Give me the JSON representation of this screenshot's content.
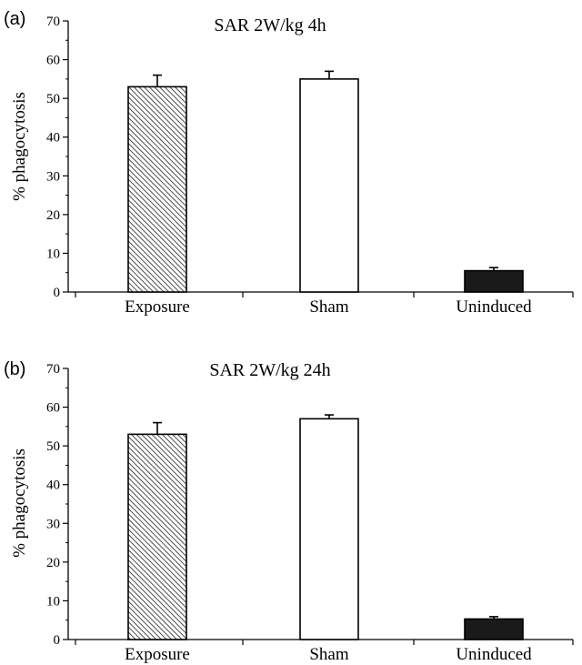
{
  "chart_data": [
    {
      "panel_label": "(a)",
      "type": "bar",
      "title": "SAR 2W/kg 4h",
      "xlabel": "",
      "ylabel": "% phagocytosis",
      "ylim": [
        0,
        70
      ],
      "yticks": [
        0,
        10,
        20,
        30,
        40,
        50,
        60,
        70
      ],
      "categories": [
        "Exposure",
        "Sham",
        "Uninduced"
      ],
      "values": [
        53,
        55,
        5.5
      ],
      "errors": [
        3,
        2,
        0.8
      ],
      "fills": [
        "hatched",
        "white",
        "black"
      ],
      "grid": false,
      "legend": "none"
    },
    {
      "panel_label": "(b)",
      "type": "bar",
      "title": "SAR 2W/kg 24h",
      "xlabel": "",
      "ylabel": "% phagocytosis",
      "ylim": [
        0,
        70
      ],
      "yticks": [
        0,
        10,
        20,
        30,
        40,
        50,
        60,
        70
      ],
      "categories": [
        "Exposure",
        "Sham",
        "Uninduced"
      ],
      "values": [
        53,
        57,
        5.3
      ],
      "errors": [
        3,
        1,
        0.6
      ],
      "fills": [
        "hatched",
        "white",
        "black"
      ],
      "grid": false,
      "legend": "none"
    }
  ]
}
